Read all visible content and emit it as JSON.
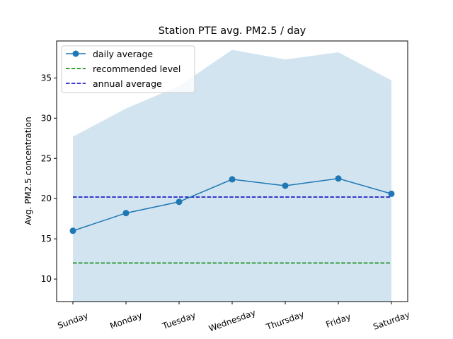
{
  "chart_data": {
    "type": "line",
    "title": "Station PTE avg. PM2.5 / day",
    "xlabel": "",
    "ylabel": "Avg. PM2.5 concentration",
    "categories": [
      "Sunday",
      "Monday",
      "Tuesday",
      "Wednesday",
      "Thursday",
      "Friday",
      "Saturday"
    ],
    "series": [
      {
        "name": "daily average",
        "values": [
          16.0,
          18.2,
          19.6,
          22.4,
          21.6,
          22.5,
          20.6
        ],
        "color": "#1f77b4",
        "marker": "circle"
      }
    ],
    "band": {
      "upper": [
        27.7,
        31.2,
        34.0,
        38.5,
        37.3,
        38.2,
        34.7
      ],
      "lower": [
        7.2,
        7.2,
        7.2,
        7.2,
        7.2,
        7.2,
        7.2
      ],
      "color": "#1f77b4",
      "opacity": 0.2
    },
    "reference_lines": [
      {
        "name": "recommended level",
        "value": 12.0,
        "color": "#008000",
        "style": "dashed"
      },
      {
        "name": "annual average",
        "value": 20.2,
        "color": "#0000bb",
        "style": "dashed"
      }
    ],
    "ylim": [
      7.2,
      39.6
    ],
    "yticks": [
      10,
      15,
      20,
      25,
      30,
      35
    ],
    "xtick_rotation": -20,
    "grid": false,
    "legend_position": "top-left"
  }
}
